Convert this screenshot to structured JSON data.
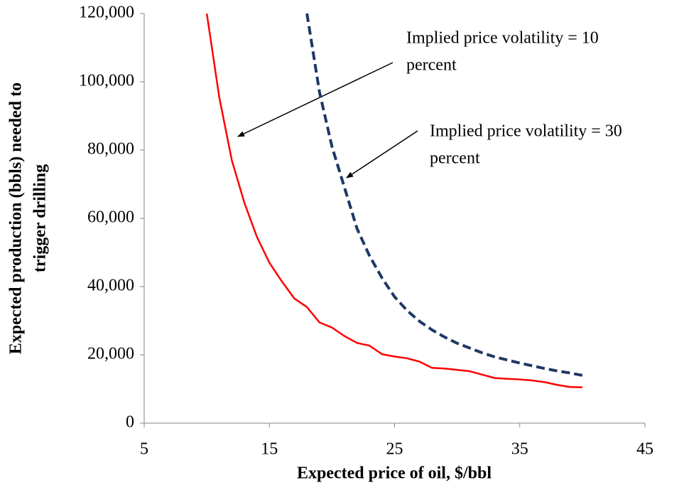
{
  "chart_data": {
    "type": "line",
    "xlabel": "Expected price of oil, $/bbl",
    "ylabel": [
      "Expected production (bbls) needed to",
      "trigger drilling"
    ],
    "xlim": [
      5,
      45
    ],
    "xticks": [
      5,
      15,
      25,
      35,
      45
    ],
    "ylim": [
      0,
      120000
    ],
    "yticks": [
      0,
      {
        "value": 20000,
        "label": "20,000"
      },
      {
        "value": 40000,
        "label": "40,000"
      },
      {
        "value": 60000,
        "label": "60,000"
      },
      {
        "value": 80000,
        "label": "80,000"
      },
      {
        "value": 100000,
        "label": "100,000"
      },
      {
        "value": 120000,
        "label": "120,000"
      }
    ],
    "grid": false,
    "series": [
      {
        "color": "#ff0000",
        "style": "solid",
        "x": [
          10,
          11,
          12,
          13,
          14,
          15,
          16,
          17,
          18,
          19,
          20,
          21,
          22,
          23,
          24,
          25,
          26,
          27,
          28,
          29,
          30,
          31,
          32,
          33,
          34,
          35,
          36,
          37,
          38,
          39,
          40
        ],
        "values": [
          120000,
          95400,
          77000,
          64600,
          54600,
          47000,
          41500,
          36500,
          34000,
          29500,
          28000,
          25500,
          23500,
          22700,
          20200,
          19500,
          19000,
          18000,
          16200,
          16000,
          15600,
          15200,
          14200,
          13200,
          13000,
          12800,
          12500,
          12000,
          11200,
          10600,
          10500
        ]
      },
      {
        "color": "#1f3864",
        "style": "dashed",
        "x": [
          18,
          19,
          20,
          21,
          22,
          23,
          24,
          25,
          26,
          27,
          28,
          29,
          30,
          31,
          32,
          33,
          34,
          35,
          36,
          37,
          38,
          39,
          40
        ],
        "values": [
          120000,
          97000,
          81000,
          69000,
          57000,
          49000,
          42500,
          37000,
          33000,
          29800,
          27300,
          25200,
          23400,
          22000,
          20600,
          19400,
          18500,
          17600,
          16800,
          16000,
          15300,
          14700,
          14000
        ]
      }
    ],
    "annotations": [
      {
        "lines": [
          "Implied price volatility = 10",
          "percent"
        ]
      },
      {
        "lines": [
          "Implied price volatility = 30",
          "percent"
        ]
      }
    ]
  }
}
